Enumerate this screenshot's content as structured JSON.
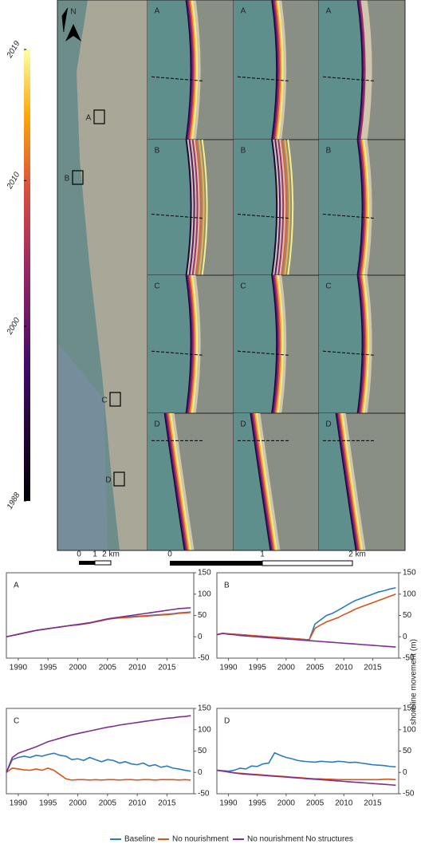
{
  "map": {
    "north": "N",
    "overview_labels": [
      "A",
      "B",
      "C",
      "D"
    ],
    "panel_labels": [
      [
        "A",
        "A",
        "A"
      ],
      [
        "B",
        "B",
        "B"
      ],
      [
        "C",
        "C",
        "C"
      ],
      [
        "D",
        "D",
        "D"
      ]
    ],
    "panel_label_colors": [
      "#3d8fd6",
      "#e5743c",
      "#8a3f99"
    ],
    "colorbar": {
      "lim": [
        1988,
        2019
      ],
      "ticks": [
        1988,
        2000,
        2010,
        2019
      ]
    },
    "scale_left": [
      "0",
      "1",
      "2 km"
    ],
    "scale_right": [
      "0",
      "1",
      "2 km"
    ]
  },
  "chart_data": [
    {
      "type": "line",
      "title": "A",
      "x": [
        1988,
        1989,
        1990,
        1991,
        1992,
        1993,
        1994,
        1995,
        1996,
        1997,
        1998,
        1999,
        2000,
        2001,
        2002,
        2003,
        2004,
        2005,
        2006,
        2007,
        2008,
        2009,
        2010,
        2011,
        2012,
        2013,
        2014,
        2015,
        2016,
        2017,
        2018,
        2019
      ],
      "series": [
        {
          "name": "Baseline",
          "color": "#2b7bbf",
          "values": [
            0,
            3,
            6,
            9,
            12,
            15,
            17,
            19,
            21,
            23,
            25,
            27,
            28,
            30,
            32,
            35,
            38,
            41,
            43,
            45,
            46,
            47,
            48,
            49,
            50,
            51,
            52,
            53,
            54,
            56,
            57,
            58
          ]
        },
        {
          "name": "No nourishment",
          "color": "#d9541a",
          "values": [
            0,
            3,
            6,
            9,
            12,
            15,
            17,
            19,
            21,
            23,
            25,
            27,
            28,
            30,
            32,
            35,
            38,
            41,
            43,
            44,
            45,
            46,
            47,
            48,
            49,
            50,
            51,
            52,
            53,
            55,
            56,
            57
          ]
        },
        {
          "name": "No nourishment No structures",
          "color": "#7e2f8e",
          "values": [
            0,
            3,
            6,
            9,
            12,
            15,
            17,
            19,
            21,
            23,
            25,
            27,
            29,
            31,
            33,
            36,
            39,
            42,
            44,
            46,
            48,
            50,
            52,
            54,
            56,
            58,
            60,
            62,
            64,
            66,
            67,
            68
          ]
        }
      ],
      "xlim": [
        1988,
        2019.5
      ],
      "ylim": [
        -50,
        150
      ],
      "xticks": [
        1990,
        1995,
        2000,
        2005,
        2010,
        2015
      ],
      "yticks": [
        -50,
        0,
        50,
        100,
        150
      ]
    },
    {
      "type": "line",
      "title": "B",
      "ylabel": "shoreline movement (m)",
      "x": [
        1988,
        1989,
        1990,
        1991,
        1992,
        1993,
        1994,
        1995,
        1996,
        1997,
        1998,
        1999,
        2000,
        2001,
        2002,
        2003,
        2004,
        2005,
        2006,
        2007,
        2008,
        2009,
        2010,
        2011,
        2012,
        2013,
        2014,
        2015,
        2016,
        2017,
        2018,
        2019
      ],
      "series": [
        {
          "name": "Baseline",
          "color": "#2b7bbf",
          "values": [
            5,
            8,
            7,
            6,
            5,
            4,
            3,
            2,
            1,
            0,
            -1,
            -2,
            -3,
            -4,
            -5,
            -6,
            -7,
            30,
            40,
            50,
            55,
            62,
            70,
            78,
            85,
            90,
            95,
            100,
            105,
            108,
            112,
            115
          ]
        },
        {
          "name": "No nourishment",
          "color": "#d9541a",
          "values": [
            5,
            8,
            7,
            6,
            5,
            4,
            3,
            2,
            1,
            0,
            -1,
            -2,
            -3,
            -4,
            -5,
            -6,
            -7,
            20,
            28,
            35,
            40,
            45,
            52,
            58,
            65,
            70,
            75,
            80,
            85,
            90,
            95,
            100
          ]
        },
        {
          "name": "No nourishment No structures",
          "color": "#7e2f8e",
          "values": [
            5,
            8,
            6,
            5,
            3,
            2,
            1,
            0,
            -1,
            -2,
            -3,
            -4,
            -5,
            -6,
            -7,
            -8,
            -9,
            -10,
            -11,
            -12,
            -13,
            -14,
            -15,
            -16,
            -17,
            -18,
            -19,
            -20,
            -21,
            -22,
            -23,
            -24
          ]
        }
      ],
      "xlim": [
        1988,
        2019.5
      ],
      "ylim": [
        -50,
        150
      ],
      "xticks": [
        1990,
        1995,
        2000,
        2005,
        2010,
        2015
      ],
      "yticks": [
        -50,
        0,
        50,
        100,
        150
      ]
    },
    {
      "type": "line",
      "title": "C",
      "x": [
        1988,
        1989,
        1990,
        1991,
        1992,
        1993,
        1994,
        1995,
        1996,
        1997,
        1998,
        1999,
        2000,
        2001,
        2002,
        2003,
        2004,
        2005,
        2006,
        2007,
        2008,
        2009,
        2010,
        2011,
        2012,
        2013,
        2014,
        2015,
        2016,
        2017,
        2018,
        2019
      ],
      "series": [
        {
          "name": "Baseline",
          "color": "#2b7bbf",
          "values": [
            0,
            30,
            35,
            38,
            35,
            40,
            38,
            42,
            45,
            40,
            38,
            30,
            32,
            28,
            35,
            30,
            25,
            30,
            28,
            22,
            25,
            20,
            18,
            22,
            15,
            18,
            12,
            15,
            10,
            8,
            5,
            3
          ]
        },
        {
          "name": "No nourishment",
          "color": "#d9541a",
          "values": [
            0,
            10,
            8,
            6,
            5,
            8,
            5,
            10,
            5,
            -5,
            -15,
            -18,
            -17,
            -17,
            -18,
            -17,
            -18,
            -17,
            -17,
            -18,
            -17,
            -17,
            -18,
            -17,
            -17,
            -18,
            -17,
            -17,
            -17,
            -18,
            -17,
            -18
          ]
        },
        {
          "name": "No nourishment No structures",
          "color": "#7e2f8e",
          "values": [
            0,
            35,
            45,
            50,
            55,
            60,
            66,
            72,
            76,
            80,
            84,
            88,
            91,
            94,
            97,
            100,
            103,
            106,
            108,
            111,
            113,
            115,
            117,
            119,
            121,
            123,
            125,
            127,
            128,
            130,
            131,
            133
          ]
        }
      ],
      "xlim": [
        1988,
        2019.5
      ],
      "ylim": [
        -50,
        150
      ],
      "xticks": [
        1990,
        1995,
        2000,
        2005,
        2010,
        2015
      ],
      "yticks": [
        -50,
        0,
        50,
        100,
        150
      ]
    },
    {
      "type": "line",
      "title": "D",
      "x": [
        1988,
        1989,
        1990,
        1991,
        1992,
        1993,
        1994,
        1995,
        1996,
        1997,
        1998,
        1999,
        2000,
        2001,
        2002,
        2003,
        2004,
        2005,
        2006,
        2007,
        2008,
        2009,
        2010,
        2011,
        2012,
        2013,
        2014,
        2015,
        2016,
        2017,
        2018,
        2019
      ],
      "series": [
        {
          "name": "Baseline",
          "color": "#2b7bbf",
          "values": [
            5,
            4,
            3,
            5,
            10,
            8,
            15,
            14,
            20,
            22,
            46,
            40,
            35,
            32,
            28,
            26,
            25,
            24,
            26,
            25,
            24,
            26,
            25,
            23,
            24,
            22,
            20,
            18,
            17,
            16,
            14,
            13
          ]
        },
        {
          "name": "No nourishment",
          "color": "#d9541a",
          "values": [
            5,
            3,
            1,
            -1,
            -2,
            -3,
            -4,
            -5,
            -6,
            -7,
            -8,
            -9,
            -10,
            -11,
            -12,
            -13,
            -14,
            -15,
            -15,
            -16,
            -16,
            -17,
            -17,
            -17,
            -17,
            -17,
            -17,
            -17,
            -17,
            -16,
            -16,
            -17
          ]
        },
        {
          "name": "No nourishment No structures",
          "color": "#7e2f8e",
          "values": [
            5,
            3,
            1,
            -1,
            -3,
            -4,
            -5,
            -6,
            -7,
            -8,
            -9,
            -10,
            -11,
            -12,
            -13,
            -14,
            -15,
            -16,
            -17,
            -18,
            -19,
            -20,
            -21,
            -22,
            -23,
            -24,
            -25,
            -26,
            -27,
            -28,
            -29,
            -30
          ]
        }
      ],
      "xlim": [
        1988,
        2019.5
      ],
      "ylim": [
        -50,
        150
      ],
      "xticks": [
        1990,
        1995,
        2000,
        2005,
        2010,
        2015
      ],
      "yticks": [
        -50,
        0,
        50,
        100,
        150
      ]
    }
  ]
}
